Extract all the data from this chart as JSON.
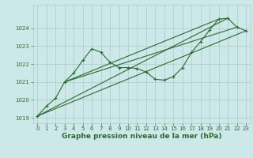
{
  "xlabel_bottom": "Graphe pression niveau de la mer (hPa)",
  "bg_color": "#cce8e8",
  "grid_color": "#aacccc",
  "line_color": "#2d6a2d",
  "xlim": [
    -0.5,
    23.5
  ],
  "ylim": [
    1018.7,
    1025.3
  ],
  "yticks": [
    1019,
    1020,
    1021,
    1022,
    1023,
    1024
  ],
  "xticks": [
    0,
    1,
    2,
    3,
    4,
    5,
    6,
    7,
    8,
    9,
    10,
    11,
    12,
    13,
    14,
    15,
    16,
    17,
    18,
    19,
    20,
    21,
    22,
    23
  ],
  "main_x": [
    0,
    1,
    2,
    3,
    4,
    5,
    6,
    7,
    8,
    9,
    10,
    11,
    12,
    13,
    14,
    15,
    16,
    17,
    18,
    19,
    20,
    21,
    22,
    23
  ],
  "main_y": [
    1019.1,
    1019.65,
    1020.1,
    1021.0,
    1021.5,
    1022.2,
    1022.85,
    1022.65,
    1022.1,
    1021.8,
    1021.8,
    1021.75,
    1021.55,
    1021.15,
    1021.1,
    1021.3,
    1021.8,
    1022.65,
    1023.25,
    1023.9,
    1024.5,
    1024.55,
    1024.05,
    1023.85
  ],
  "trend1_x": [
    0,
    23
  ],
  "trend1_y": [
    1019.1,
    1023.85
  ],
  "trend2_x": [
    0,
    21
  ],
  "trend2_y": [
    1019.1,
    1024.55
  ],
  "trend3_x": [
    3,
    20
  ],
  "trend3_y": [
    1021.0,
    1024.5
  ],
  "trend4_x": [
    3,
    22
  ],
  "trend4_y": [
    1021.0,
    1024.05
  ]
}
